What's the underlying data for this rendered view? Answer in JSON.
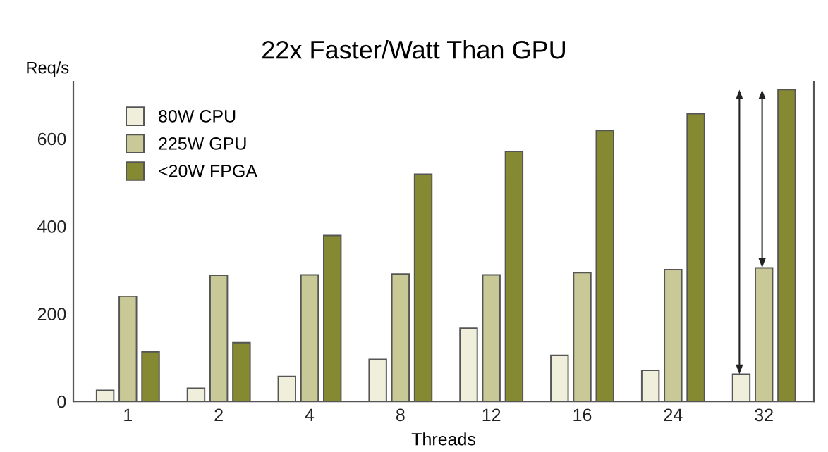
{
  "chart_data": {
    "type": "bar",
    "title": "22x Faster/Watt Than GPU",
    "xlabel": "Threads",
    "ylabel": "Req/s",
    "categories": [
      "1",
      "2",
      "4",
      "8",
      "12",
      "16",
      "24",
      "32"
    ],
    "series": [
      {
        "name": "80W CPU",
        "color": "#f0efdc",
        "values": [
          25,
          30,
          57,
          96,
          167,
          105,
          71,
          62
        ]
      },
      {
        "name": "225W GPU",
        "color": "#c9c897",
        "values": [
          240,
          288,
          289,
          291,
          289,
          294,
          301,
          305
        ]
      },
      {
        "name": "<20W FPGA",
        "color": "#858a32",
        "values": [
          113,
          134,
          379,
          519,
          571,
          619,
          657,
          712
        ]
      }
    ],
    "ylim": [
      0,
      730
    ],
    "yticks": [
      0,
      200,
      400,
      600
    ],
    "grid": false,
    "legend": "top left"
  }
}
